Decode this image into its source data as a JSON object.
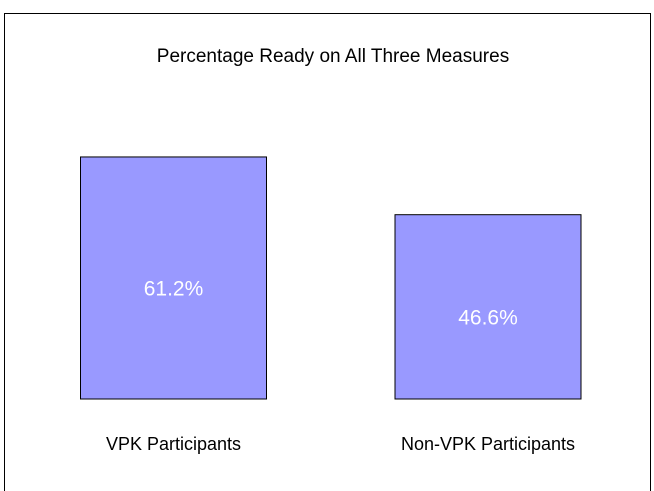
{
  "chart_data": {
    "type": "bar",
    "title": "Percentage Ready on All Three Measures",
    "categories": [
      "VPK Participants",
      "Non-VPK Participants"
    ],
    "values": [
      61.2,
      46.6
    ],
    "value_labels": [
      "61.2%",
      "46.6%"
    ],
    "color": "#9999ff"
  }
}
